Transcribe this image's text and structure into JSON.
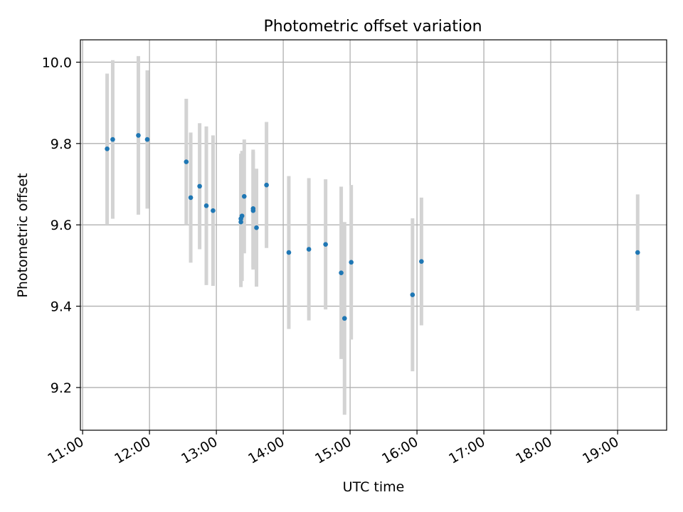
{
  "chart_data": {
    "type": "scatter",
    "title": "Photometric offset variation",
    "xlabel": "UTC time",
    "ylabel": "Photometric offset",
    "xlim": [
      "10:58",
      "19:44"
    ],
    "ylim": [
      9.095,
      10.055
    ],
    "grid": true,
    "x_ticks": [
      "11:00",
      "12:00",
      "13:00",
      "14:00",
      "15:00",
      "16:00",
      "17:00",
      "18:00",
      "19:00"
    ],
    "y_ticks": [
      9.2,
      9.4,
      9.6,
      9.8,
      10.0
    ],
    "y_tick_labels": [
      "9.2",
      "9.4",
      "9.6",
      "9.8",
      "10.0"
    ],
    "colors": {
      "marker": "#1f77b4",
      "errorbar": "#d3d3d3",
      "grid": "#b0b0b0"
    },
    "points": [
      {
        "x": "11:22",
        "y": 9.787,
        "yerr": 0.185
      },
      {
        "x": "11:27",
        "y": 9.81,
        "yerr": 0.195
      },
      {
        "x": "11:50",
        "y": 9.82,
        "yerr": 0.195
      },
      {
        "x": "11:58",
        "y": 9.81,
        "yerr": 0.17
      },
      {
        "x": "12:33",
        "y": 9.755,
        "yerr": 0.155
      },
      {
        "x": "12:37",
        "y": 9.667,
        "yerr": 0.16
      },
      {
        "x": "12:45",
        "y": 9.695,
        "yerr": 0.155
      },
      {
        "x": "12:51",
        "y": 9.647,
        "yerr": 0.195
      },
      {
        "x": "12:57",
        "y": 9.635,
        "yerr": 0.185
      },
      {
        "x": "13:22",
        "y": 9.607,
        "yerr": 0.16
      },
      {
        "x": "13:22",
        "y": 9.615,
        "yerr": 0.16
      },
      {
        "x": "13:23",
        "y": 9.622,
        "yerr": 0.16
      },
      {
        "x": "13:25",
        "y": 9.67,
        "yerr": 0.14
      },
      {
        "x": "13:33",
        "y": 9.64,
        "yerr": 0.145
      },
      {
        "x": "13:33",
        "y": 9.635,
        "yerr": 0.145
      },
      {
        "x": "13:36",
        "y": 9.593,
        "yerr": 0.145
      },
      {
        "x": "13:45",
        "y": 9.698,
        "yerr": 0.155
      },
      {
        "x": "14:05",
        "y": 9.532,
        "yerr": 0.188
      },
      {
        "x": "14:23",
        "y": 9.54,
        "yerr": 0.175
      },
      {
        "x": "14:38",
        "y": 9.552,
        "yerr": 0.16
      },
      {
        "x": "14:52",
        "y": 9.482,
        "yerr": 0.212
      },
      {
        "x": "14:55",
        "y": 9.37,
        "yerr": 0.237
      },
      {
        "x": "15:01",
        "y": 9.508,
        "yerr": 0.19
      },
      {
        "x": "15:56",
        "y": 9.428,
        "yerr": 0.188
      },
      {
        "x": "16:04",
        "y": 9.51,
        "yerr": 0.157
      },
      {
        "x": "19:18",
        "y": 9.532,
        "yerr": 0.143
      }
    ]
  }
}
